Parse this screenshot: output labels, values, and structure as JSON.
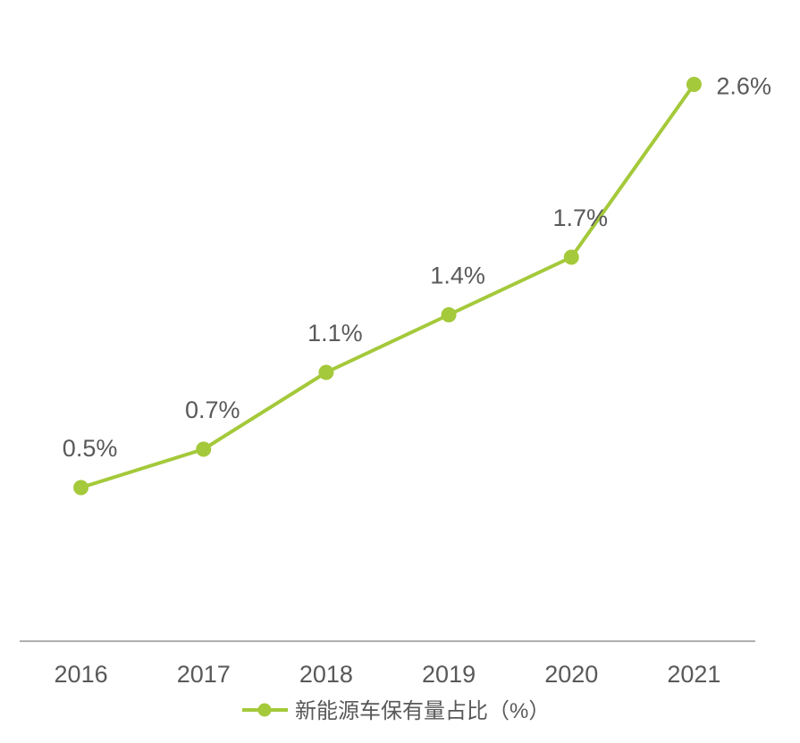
{
  "chart_data": {
    "type": "line",
    "x": [
      "2016",
      "2017",
      "2018",
      "2019",
      "2020",
      "2021"
    ],
    "series": [
      {
        "name": "新能源车保有量占比（%）",
        "values": [
          0.5,
          0.7,
          1.1,
          1.4,
          1.7,
          2.6
        ],
        "labels": [
          "0.5%",
          "0.7%",
          "1.1%",
          "1.4%",
          "1.7%",
          "2.6%"
        ],
        "color": "#a4c93a"
      }
    ],
    "ylim": [
      -0.3,
      2.9
    ],
    "grid": false,
    "legend_position": "bottom-center"
  }
}
